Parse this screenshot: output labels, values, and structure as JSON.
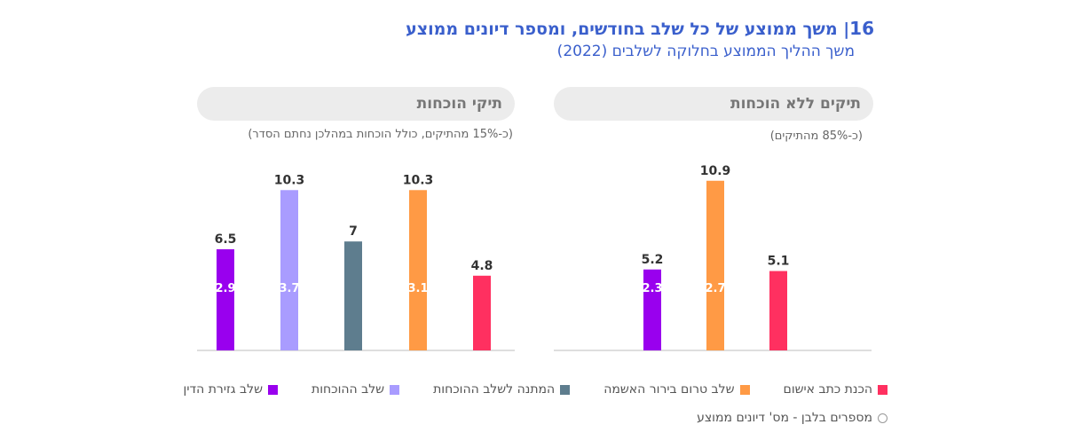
{
  "header": {
    "number": "16",
    "separator": "|",
    "title": "משך ממוצע של כל שלב בחודשים, ומספר דיונים ממוצע",
    "subtitle": "משך ההליך הממוצע בחלוקה לשלבים (2022)"
  },
  "colors": {
    "sentencing": "#9900ee",
    "evidence": "#a99cff",
    "waiting": "#5e7d8e",
    "pre_indictment": "#ff9a45",
    "indictment_prep": "#ff3060"
  },
  "legend": {
    "items": [
      {
        "label": "הכנת כתב אישום",
        "color": "#ff3060"
      },
      {
        "label": "שלב טרום בירור האשמה",
        "color": "#ff9a45"
      },
      {
        "label": "המתנה לשלב ההוכחות",
        "color": "#5e7d8e"
      },
      {
        "label": "שלב ההוכחות",
        "color": "#a99cff"
      },
      {
        "label": "שלב גזירת הדין",
        "color": "#9900ee"
      }
    ],
    "note": "מספרים בלבן - מס' דיונים ממוצע"
  },
  "chart_data": [
    {
      "type": "bar",
      "title": "תיקים ללא הוכחות",
      "subtitle": "(כ-85% מהתיקים)",
      "categories": [
        "שלב גזירת הדין",
        "שלב טרום בירור האשמה",
        "הכנת כתב אישום"
      ],
      "values": [
        5.2,
        10.9,
        5.1
      ],
      "inner_labels": [
        "2.3",
        "2.7",
        ""
      ],
      "colors": [
        "#9900ee",
        "#ff9a45",
        "#ff3060"
      ],
      "ylim": [
        0,
        11
      ]
    },
    {
      "type": "bar",
      "title": "תיקי הוכחות",
      "subtitle": "(כ-15% מהתיקים, כולל הוכחות במהלכן נחתם הסדר)",
      "categories": [
        "שלב גזירת הדין",
        "שלב ההוכחות",
        "המתנה לשלב ההוכחות",
        "שלב טרום בירור האשמה",
        "הכנת כתב אישום"
      ],
      "values": [
        6.5,
        10.3,
        7,
        10.3,
        4.8
      ],
      "inner_labels": [
        "2.9",
        "3.7",
        "",
        "3.1",
        ""
      ],
      "colors": [
        "#9900ee",
        "#a99cff",
        "#5e7d8e",
        "#ff9a45",
        "#ff3060"
      ],
      "ylim": [
        0,
        11
      ]
    }
  ]
}
